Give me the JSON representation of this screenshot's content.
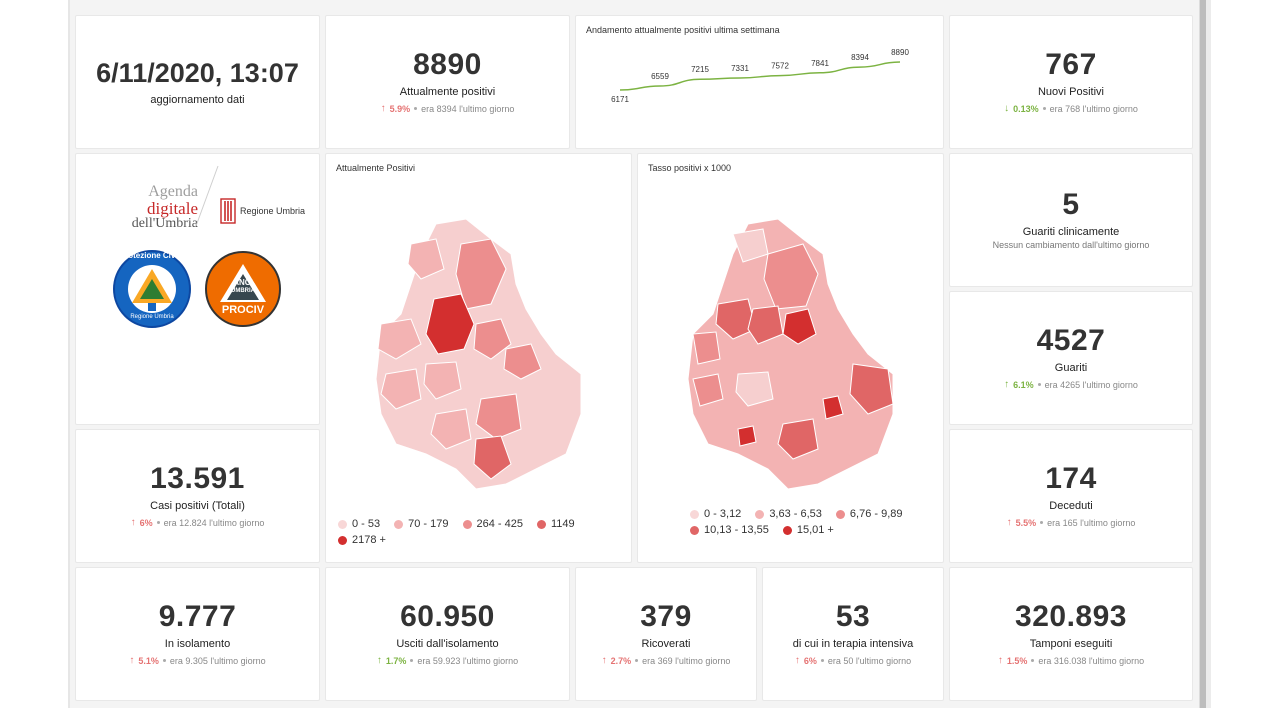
{
  "update": {
    "datetime": "6/11/2020, 13:07",
    "label": "aggiornamento dati"
  },
  "attualmente_positivi": {
    "value": "8890",
    "label": "Attualmente positivi",
    "pct": "5.9%",
    "prev": "era 8394 l'ultimo giorno",
    "direction": "up"
  },
  "trend": {
    "title": "Andamento attualmente positivi ultima settimana",
    "chart_data": {
      "type": "line",
      "title": "Andamento attualmente positivi ultima settimana",
      "x": [
        1,
        2,
        3,
        4,
        5,
        6,
        7,
        8
      ],
      "values": [
        6171,
        6559,
        7215,
        7331,
        7572,
        7841,
        8394,
        8890
      ],
      "labels": [
        "6171",
        "6559",
        "7215",
        "7331",
        "7572",
        "7841",
        "8394",
        "8890"
      ],
      "color": "#7cb342"
    }
  },
  "nuovi_positivi": {
    "value": "767",
    "label": "Nuovi Positivi",
    "pct": "0.13%",
    "prev": "era 768 l'ultimo giorno",
    "direction": "down"
  },
  "logos": {
    "agenda_line1": "Agenda",
    "agenda_line2": "digitale",
    "agenda_line3": "dell'Umbria",
    "regione": "Regione Umbria",
    "protezione": "Protezione Civile",
    "protezione_sub": "Regione Umbria",
    "anci_top": "ANCI",
    "anci_mid": "UMBRIA",
    "anci_bottom": "PROCIV"
  },
  "map_positivi": {
    "title": "Attualmente Positivi",
    "legend": [
      {
        "label": "0 - 53",
        "color": "#f8d7d7"
      },
      {
        "label": "70 - 179",
        "color": "#f3b3b3"
      },
      {
        "label": "264 - 425",
        "color": "#ec8e8e"
      },
      {
        "label": "1149",
        "color": "#e06666"
      },
      {
        "label": "2178 +",
        "color": "#d32f2f"
      }
    ]
  },
  "map_tasso": {
    "title": "Tasso positivi x 1000",
    "legend": [
      {
        "label": "0 - 3,12",
        "color": "#f8d7d7"
      },
      {
        "label": "3,63 - 6,53",
        "color": "#f3b3b3"
      },
      {
        "label": "6,76 - 9,89",
        "color": "#ec8e8e"
      },
      {
        "label": "10,13 - 13,55",
        "color": "#e06666"
      },
      {
        "label": "15,01 +",
        "color": "#d32f2f"
      }
    ]
  },
  "guariti_clinicamente": {
    "value": "5",
    "label": "Guariti clinicamente",
    "sub": "Nessun cambiamento dall'ultimo giorno"
  },
  "guariti": {
    "value": "4527",
    "label": "Guariti",
    "pct": "6.1%",
    "prev": "era 4265 l'ultimo giorno",
    "direction": "up"
  },
  "casi_totali": {
    "value": "13.591",
    "label": "Casi positivi (Totali)",
    "pct": "6%",
    "prev": "era 12.824 l'ultimo giorno",
    "direction": "up"
  },
  "deceduti": {
    "value": "174",
    "label": "Deceduti",
    "pct": "5.5%",
    "prev": "era 165 l'ultimo giorno",
    "direction": "up"
  },
  "isolamento": {
    "value": "9.777",
    "label": "In isolamento",
    "pct": "5.1%",
    "prev": "era 9.305 l'ultimo giorno",
    "direction": "up"
  },
  "usciti": {
    "value": "60.950",
    "label": "Usciti dall'isolamento",
    "pct": "1.7%",
    "prev": "era 59.923 l'ultimo giorno",
    "direction": "up"
  },
  "ricoverati": {
    "value": "379",
    "label": "Ricoverati",
    "pct": "2.7%",
    "prev": "era 369 l'ultimo giorno",
    "direction": "up"
  },
  "terapia": {
    "value": "53",
    "label": "di cui in terapia intensiva",
    "pct": "6%",
    "prev": "era 50 l'ultimo giorno",
    "direction": "up"
  },
  "tamponi": {
    "value": "320.893",
    "label": "Tamponi eseguiti",
    "pct": "1.5%",
    "prev": "era 316.038 l'ultimo giorno",
    "direction": "up"
  },
  "colors": {
    "up": "#e57373",
    "down": "#7cb342",
    "good_up": "#7cb342"
  }
}
